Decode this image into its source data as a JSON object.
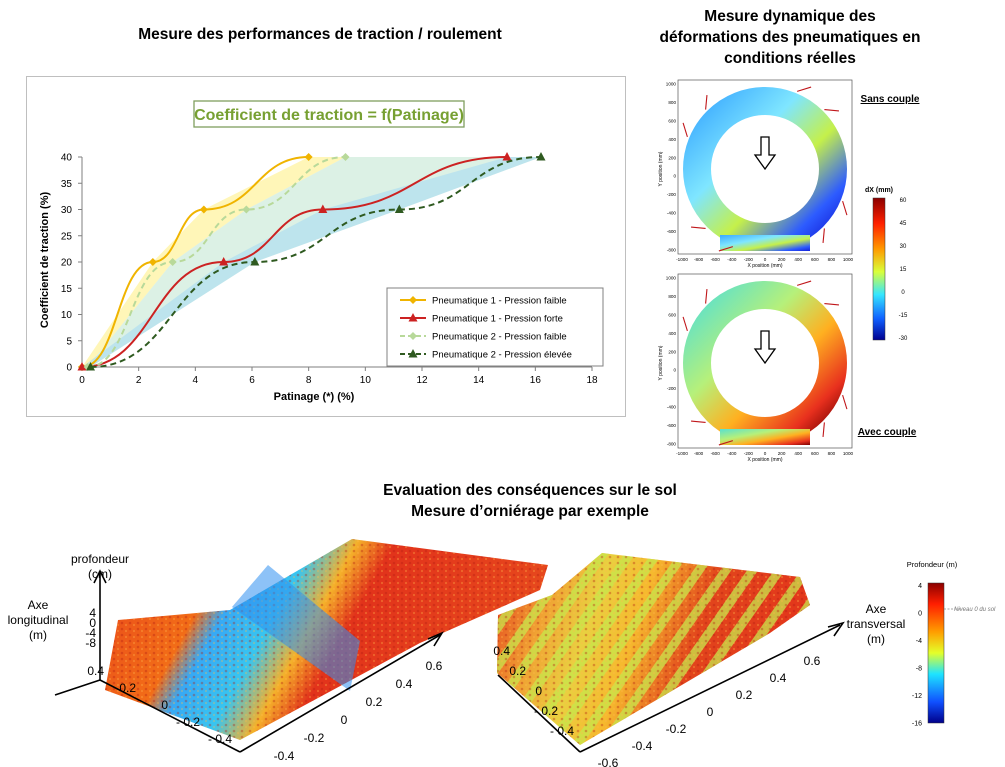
{
  "headings": {
    "top_left": "Mesure des performances de traction / roulement",
    "top_right": [
      "Mesure dynamique des",
      "déformations des pneumatiques en",
      "conditions réelles"
    ],
    "bottom": [
      "Evaluation des conséquences sur le sol",
      "Mesure d’orniérage par exemple"
    ]
  },
  "chart_data": [
    {
      "type": "line",
      "title": "Coefficient de traction =  f(Patinage)",
      "xlabel": "Patinage (*) (%)",
      "ylabel": "Coefficient de traction (%)",
      "xlim": [
        0,
        18
      ],
      "ylim": [
        0,
        40
      ],
      "xticks": [
        "0",
        "2",
        "4",
        "6",
        "8",
        "10",
        "12",
        "14",
        "16",
        "18"
      ],
      "yticks": [
        "0",
        "5",
        "10",
        "15",
        "20",
        "25",
        "30",
        "35",
        "40"
      ],
      "grid": false,
      "legend_position": "bottom-right",
      "series": [
        {
          "name": "Pneumatique 1 - Pression faible",
          "color": "#f0b400",
          "marker": "diamond",
          "dash": "solid",
          "x": [
            0,
            2.5,
            4.3,
            8
          ],
          "y": [
            0,
            20,
            30,
            40
          ]
        },
        {
          "name": "Pneumatique 1 - Pression forte",
          "color": "#cc2222",
          "marker": "triangle",
          "dash": "solid",
          "x": [
            0,
            5,
            8.5,
            15
          ],
          "y": [
            0,
            20,
            30,
            40
          ]
        },
        {
          "name": "Pneumatique 2 - Pression faible",
          "color": "#b8d99a",
          "marker": "diamond",
          "dash": "dashed",
          "x": [
            0.2,
            3.2,
            5.8,
            9.3
          ],
          "y": [
            0,
            20,
            30,
            40
          ]
        },
        {
          "name": "Pneumatique 2 - Pression élevée",
          "color": "#2f5a20",
          "marker": "triangle",
          "dash": "dashed",
          "x": [
            0.3,
            6.1,
            11.2,
            16.2
          ],
          "y": [
            0,
            20,
            30,
            40
          ]
        }
      ]
    },
    {
      "type": "heatmap",
      "panels": [
        {
          "label": "Sans couple"
        },
        {
          "label": "Avec couple"
        }
      ],
      "xlabel": "X position (mm)",
      "ylabel": "Y position (mm)",
      "xticks": [
        "-1000",
        "-800",
        "-600",
        "-400",
        "-200",
        "0",
        "200",
        "400",
        "600",
        "800",
        "1000"
      ],
      "yticks": [
        "1000",
        "800",
        "600",
        "400",
        "200",
        "0",
        "-200",
        "-400",
        "-600",
        "-800"
      ],
      "colorbar": {
        "title": "dX (mm)",
        "ticks": [
          "60",
          "45",
          "30",
          "15",
          "0",
          "-15",
          "-30"
        ]
      }
    },
    {
      "type": "heatmap",
      "colorbar": {
        "title": "Profondeur (m)",
        "ticks": [
          "4",
          "0",
          "-4",
          "-8",
          "-12",
          "-16"
        ],
        "annotation": "Niveau 0 du sol"
      },
      "axis_labels": {
        "depth": [
          "profondeur",
          "(cm)"
        ],
        "longitudinal": [
          "Axe",
          "longitudinal",
          "(m)"
        ],
        "transversal": [
          "Axe",
          "transversal",
          "(m)"
        ]
      },
      "depth_ticks": [
        "4",
        "0",
        "-4",
        "-8"
      ],
      "longitudinal_ticks": [
        "0.4",
        "0.2",
        "0",
        "- 0.2",
        "- 0.4"
      ],
      "transversal_ticks": [
        "0.6",
        "0.4",
        "0.2",
        "0",
        "-0.2",
        "-0.4",
        "-0.6"
      ],
      "right_surface_longitudinal_ticks": [
        "0.4",
        "0.2",
        "0",
        "- 0.2",
        "- 0.4"
      ],
      "right_surface_transversal_ticks": [
        "0.6",
        "0.4",
        "0.2",
        "0",
        "-0.2",
        "-0.4",
        "-0.6"
      ]
    }
  ]
}
